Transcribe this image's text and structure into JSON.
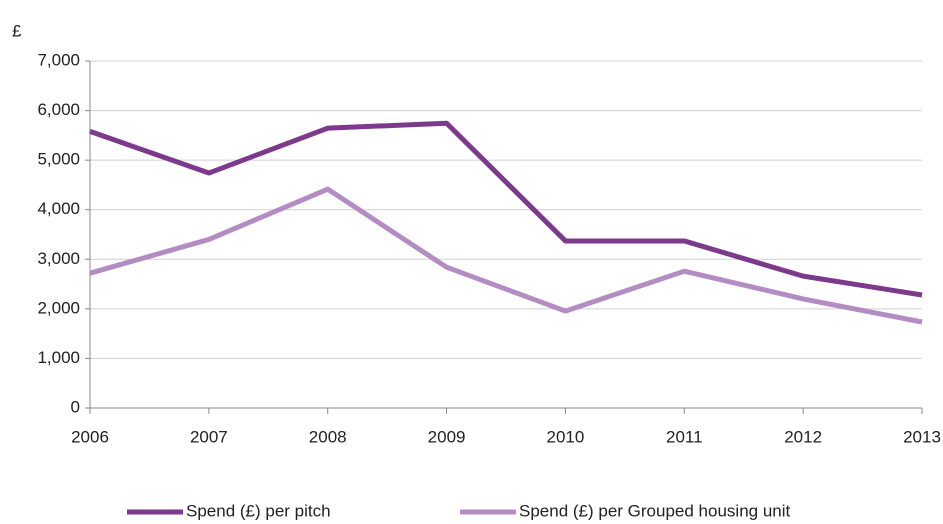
{
  "chart_data": {
    "type": "line",
    "y_axis_label": "£",
    "x": [
      2006,
      2007,
      2008,
      2009,
      2010,
      2011,
      2012,
      2013
    ],
    "xlim": [
      2006,
      2013
    ],
    "xticks": [
      2006,
      2007,
      2008,
      2009,
      2010,
      2011,
      2012,
      2013
    ],
    "ylim": [
      0,
      7000
    ],
    "yticks": [
      0,
      {
        "value": 1000,
        "label": "1,000"
      },
      {
        "value": 2000,
        "label": "2,000"
      },
      {
        "value": 3000,
        "label": "3,000"
      },
      {
        "value": 4000,
        "label": "4,000"
      },
      {
        "value": 5000,
        "label": "5,000"
      },
      {
        "value": 6000,
        "label": "6,000"
      },
      {
        "value": 7000,
        "label": "7,000"
      }
    ],
    "grid": true,
    "legend": "bottom",
    "series": [
      {
        "name": "Spend (£) per pitch",
        "color": "#7d3a8c",
        "values": [
          5580,
          4740,
          5645,
          5745,
          3370,
          3370,
          2660,
          2280
        ]
      },
      {
        "name": "Spend (£) per Grouped housing unit",
        "color": "#b48cc4",
        "values": [
          2720,
          3400,
          4415,
          2840,
          1955,
          2760,
          2200,
          1735
        ]
      }
    ]
  }
}
